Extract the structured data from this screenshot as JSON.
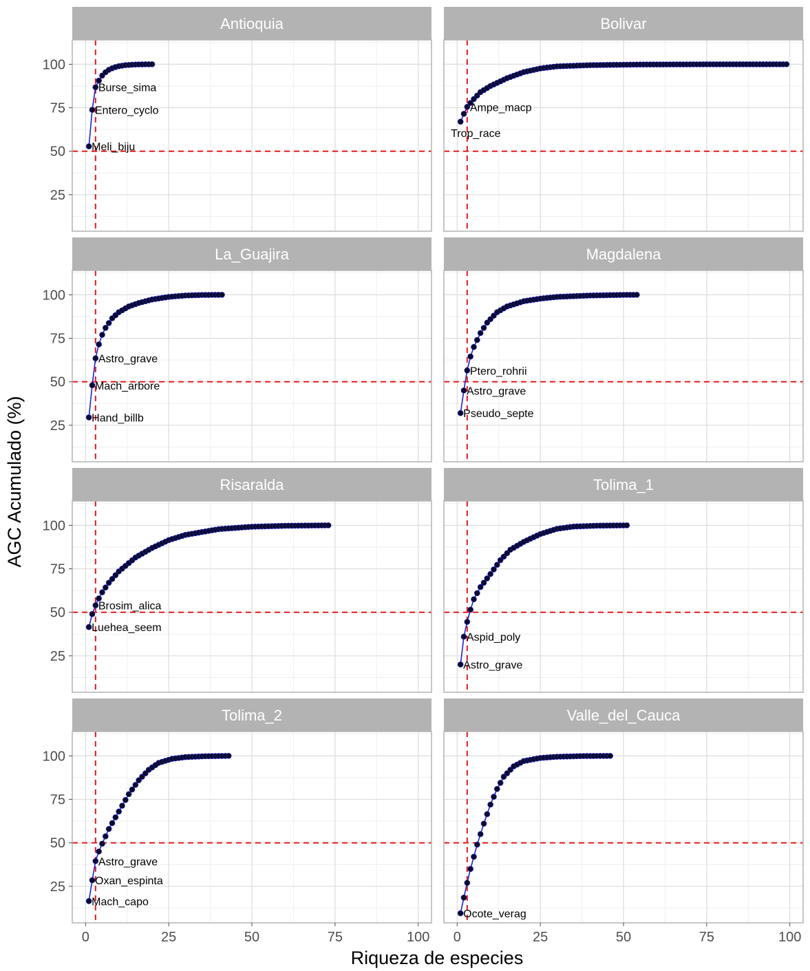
{
  "chart_data": {
    "type": "line",
    "xlabel": "Riqueza de especies",
    "ylabel": "AGC Acumulado (%)",
    "xlim": [
      -4,
      104
    ],
    "ylim": [
      4,
      114
    ],
    "xticks": [
      0,
      25,
      50,
      75,
      100
    ],
    "yticks": [
      25,
      50,
      75,
      100
    ],
    "grid": true,
    "reference_lines": {
      "x": 3,
      "y": 50,
      "color": "#e41a1c",
      "style": "dashed"
    },
    "colors": {
      "line": "#1f1fd6",
      "point": "#0b0b2a",
      "strip_bg": "#b3b3b3",
      "strip_text": "#ffffff",
      "grid_major": "#dcdcdc",
      "grid_minor": "#efefef",
      "panel_border": "#b3b3b3"
    },
    "panels": [
      {
        "title": "Antioquia",
        "n": 20,
        "values": [
          52.8,
          73.8,
          86.8,
          90.6,
          93.5,
          95.4,
          96.8,
          97.7,
          98.4,
          98.9,
          99.2,
          99.5,
          99.6,
          99.75,
          99.85,
          99.9,
          99.94,
          99.97,
          99.99,
          100
        ],
        "labels": [
          {
            "i": 1,
            "text": "Meli_biju"
          },
          {
            "i": 2,
            "text": "Entero_cyclo"
          },
          {
            "i": 3,
            "text": "Burse_sima"
          }
        ]
      },
      {
        "title": "Bolivar",
        "n": 99,
        "anchors": [
          [
            1,
            67.0
          ],
          [
            2,
            71.5
          ],
          [
            3,
            75.5
          ],
          [
            5,
            80
          ],
          [
            7,
            84
          ],
          [
            10,
            87.5
          ],
          [
            15,
            92
          ],
          [
            20,
            95.5
          ],
          [
            25,
            97.6
          ],
          [
            30,
            98.8
          ],
          [
            40,
            99.5
          ],
          [
            55,
            99.85
          ],
          [
            75,
            99.97
          ],
          [
            99,
            100
          ]
        ],
        "labels": [
          {
            "i": 1,
            "text": "Trop_race"
          },
          {
            "i": 3,
            "text": "Ampe_macp"
          }
        ]
      },
      {
        "title": "La_Guajira",
        "n": 41,
        "anchors": [
          [
            1,
            29.5
          ],
          [
            2,
            48.0
          ],
          [
            3,
            63.5
          ],
          [
            4,
            71.5
          ],
          [
            5,
            77
          ],
          [
            6,
            81
          ],
          [
            8,
            86.5
          ],
          [
            10,
            90
          ],
          [
            13,
            93.3
          ],
          [
            16,
            95.3
          ],
          [
            20,
            97.3
          ],
          [
            25,
            98.8
          ],
          [
            30,
            99.6
          ],
          [
            35,
            99.9
          ],
          [
            41,
            100
          ]
        ],
        "labels": [
          {
            "i": 1,
            "text": "Hand_billb"
          },
          {
            "i": 2,
            "text": "Mach_arbore"
          },
          {
            "i": 3,
            "text": "Astro_grave"
          }
        ]
      },
      {
        "title": "Magdalena",
        "n": 54,
        "anchors": [
          [
            1,
            32.0
          ],
          [
            2,
            45.0
          ],
          [
            3,
            56.5
          ],
          [
            4,
            64.5
          ],
          [
            5,
            70
          ],
          [
            7,
            78
          ],
          [
            9,
            84
          ],
          [
            12,
            90
          ],
          [
            15,
            93.3
          ],
          [
            20,
            96.3
          ],
          [
            25,
            97.8
          ],
          [
            30,
            98.8
          ],
          [
            40,
            99.6
          ],
          [
            50,
            99.95
          ],
          [
            54,
            100
          ]
        ],
        "labels": [
          {
            "i": 1,
            "text": "Pseudo_septe"
          },
          {
            "i": 2,
            "text": "Astro_grave"
          },
          {
            "i": 3,
            "text": "Ptero_rohrii"
          }
        ]
      },
      {
        "title": "Risaralda",
        "n": 73,
        "anchors": [
          [
            1,
            41.5
          ],
          [
            2,
            49.0
          ],
          [
            3,
            54.0
          ],
          [
            4,
            58
          ],
          [
            5,
            61.5
          ],
          [
            7,
            67
          ],
          [
            10,
            73.5
          ],
          [
            15,
            81.5
          ],
          [
            20,
            87
          ],
          [
            25,
            91.5
          ],
          [
            30,
            94.5
          ],
          [
            40,
            97.8
          ],
          [
            50,
            99.2
          ],
          [
            60,
            99.75
          ],
          [
            73,
            100
          ]
        ],
        "labels": [
          {
            "i": 1,
            "text": "Luehea_seem"
          },
          {
            "i": 3,
            "text": "Brosim_alica"
          }
        ]
      },
      {
        "title": "Tolima_1",
        "n": 51,
        "anchors": [
          [
            1,
            20.0
          ],
          [
            2,
            36.0
          ],
          [
            3,
            44.5
          ],
          [
            4,
            51.5
          ],
          [
            5,
            57.5
          ],
          [
            7,
            64.5
          ],
          [
            10,
            72
          ],
          [
            13,
            80
          ],
          [
            16,
            86
          ],
          [
            20,
            90.5
          ],
          [
            25,
            95
          ],
          [
            30,
            98
          ],
          [
            35,
            99.3
          ],
          [
            42,
            99.8
          ],
          [
            51,
            100
          ]
        ],
        "labels": [
          {
            "i": 1,
            "text": "Astro_grave"
          },
          {
            "i": 2,
            "text": "Aspid_poly"
          }
        ]
      },
      {
        "title": "Tolima_2",
        "n": 43,
        "anchors": [
          [
            1,
            16.5
          ],
          [
            2,
            28.5
          ],
          [
            3,
            39.5
          ],
          [
            4,
            45
          ],
          [
            5,
            49.5
          ],
          [
            7,
            58
          ],
          [
            10,
            68
          ],
          [
            13,
            78
          ],
          [
            16,
            86
          ],
          [
            19,
            92
          ],
          [
            22,
            96
          ],
          [
            26,
            98.3
          ],
          [
            30,
            99.3
          ],
          [
            36,
            99.8
          ],
          [
            43,
            100
          ]
        ],
        "labels": [
          {
            "i": 1,
            "text": "Mach_capo"
          },
          {
            "i": 2,
            "text": "Oxan_espinta"
          },
          {
            "i": 3,
            "text": "Astro_grave"
          }
        ]
      },
      {
        "title": "Valle_del_Cauca",
        "n": 46,
        "anchors": [
          [
            1,
            9.5
          ],
          [
            2,
            18.5
          ],
          [
            3,
            27.0
          ],
          [
            4,
            35
          ],
          [
            5,
            42
          ],
          [
            6,
            49
          ],
          [
            8,
            61
          ],
          [
            10,
            72
          ],
          [
            12,
            81
          ],
          [
            14,
            88
          ],
          [
            17,
            94
          ],
          [
            20,
            97
          ],
          [
            25,
            98.8
          ],
          [
            30,
            99.5
          ],
          [
            38,
            99.9
          ],
          [
            46,
            100
          ]
        ],
        "labels": [
          {
            "i": 1,
            "text": "Ocote_verag"
          }
        ]
      }
    ]
  }
}
